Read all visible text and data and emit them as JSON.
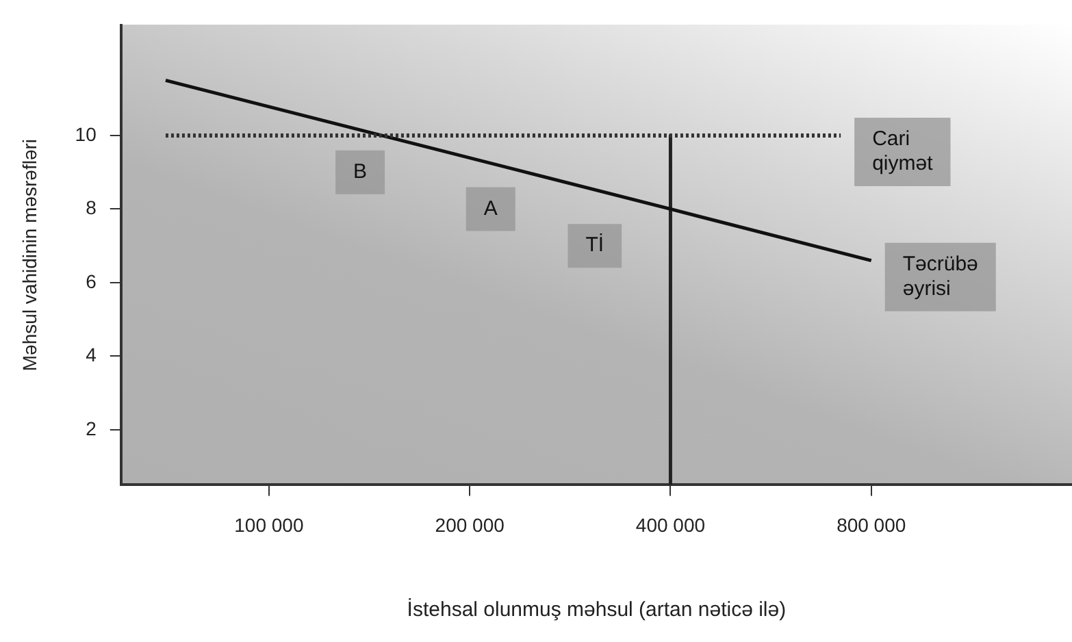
{
  "chart_data": {
    "type": "line",
    "xlabel": "İstehsal olunmuş məhsul (artan nəticə ilə)",
    "ylabel": "Məhsul vahidinin məsrəfləri",
    "log": "x",
    "xlim": [
      60000,
      1600000
    ],
    "xticks": [
      {
        "value": 100000,
        "label": "100 000"
      },
      {
        "value": 200000,
        "label": "200 000"
      },
      {
        "value": 400000,
        "label": "400 000"
      },
      {
        "value": 800000,
        "label": "800 000"
      }
    ],
    "ylim": [
      0.5,
      13
    ],
    "yticks": [
      2,
      4,
      6,
      8,
      10
    ],
    "grid": false,
    "legend": false,
    "marker": "none",
    "series": [
      {
        "name": "Cari qiymət",
        "color": "#333333",
        "line_style": "dotted",
        "x": [
          70000,
          720000
        ],
        "values": [
          10,
          10
        ]
      },
      {
        "name": "Təcrübə əyrisi",
        "color": "#111111",
        "line_style": "solid",
        "x": [
          70000,
          400000,
          800000
        ],
        "values": [
          11.5,
          8,
          6.6
        ]
      },
      {
        "color": "#222222",
        "line_style": "solid",
        "x": [
          400000,
          400000
        ],
        "values": [
          10,
          0.5
        ]
      }
    ],
    "annotations": [
      {
        "text": "B",
        "x": 137000,
        "y": 9
      },
      {
        "text": "A",
        "x": 215000,
        "y": 8
      },
      {
        "text": "Tİ",
        "x": 308000,
        "y": 7
      }
    ]
  }
}
